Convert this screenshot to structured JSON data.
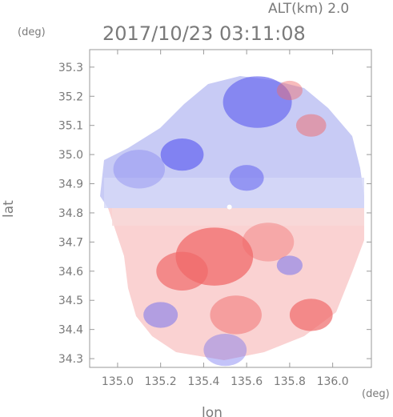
{
  "chart_data": {
    "type": "heatmap",
    "title": "2017/10/23 03:11:08",
    "subtitle": "ALT(km) 2.0",
    "xlabel": "lon",
    "ylabel": "lat",
    "x_unit": "(deg)",
    "y_unit": "(deg)",
    "xlim": [
      134.87,
      136.18
    ],
    "ylim": [
      34.27,
      35.36
    ],
    "x_ticks": [
      "135.0",
      "135.2",
      "135.4",
      "135.6",
      "135.8",
      "136.0"
    ],
    "y_ticks": [
      "34.3",
      "34.4",
      "34.5",
      "34.6",
      "34.7",
      "34.8",
      "34.9",
      "35.0",
      "35.1",
      "35.2",
      "35.3"
    ],
    "x_tick_values": [
      135.0,
      135.2,
      135.4,
      135.6,
      135.8,
      136.0
    ],
    "y_tick_values": [
      34.3,
      34.4,
      34.5,
      34.6,
      34.7,
      34.8,
      34.9,
      35.0,
      35.1,
      35.2,
      35.3
    ],
    "radar_center": {
      "lon": 135.52,
      "lat": 34.82
    },
    "colors": {
      "positive": "#f06a6a",
      "negative": "#6a6af0",
      "frame": "#9a9a9a",
      "text": "#7a7a7a"
    },
    "regions": [
      {
        "lon": 135.65,
        "lat": 35.18,
        "r": 0.16,
        "value": -0.7
      },
      {
        "lon": 135.3,
        "lat": 35.0,
        "r": 0.1,
        "value": -0.75
      },
      {
        "lon": 135.6,
        "lat": 34.92,
        "r": 0.08,
        "value": -0.6
      },
      {
        "lon": 135.9,
        "lat": 35.1,
        "r": 0.07,
        "value": 0.5
      },
      {
        "lon": 135.8,
        "lat": 35.22,
        "r": 0.06,
        "value": 0.45
      },
      {
        "lon": 135.1,
        "lat": 34.95,
        "r": 0.12,
        "value": -0.3
      },
      {
        "lon": 135.45,
        "lat": 34.65,
        "r": 0.18,
        "value": 0.75
      },
      {
        "lon": 135.3,
        "lat": 34.6,
        "r": 0.12,
        "value": 0.7
      },
      {
        "lon": 135.7,
        "lat": 34.7,
        "r": 0.12,
        "value": 0.4
      },
      {
        "lon": 135.9,
        "lat": 34.45,
        "r": 0.1,
        "value": 0.7
      },
      {
        "lon": 135.55,
        "lat": 34.45,
        "r": 0.12,
        "value": 0.5
      },
      {
        "lon": 135.2,
        "lat": 34.45,
        "r": 0.08,
        "value": -0.5
      },
      {
        "lon": 135.8,
        "lat": 34.62,
        "r": 0.06,
        "value": -0.5
      },
      {
        "lon": 135.5,
        "lat": 34.33,
        "r": 0.1,
        "value": -0.4
      }
    ]
  }
}
